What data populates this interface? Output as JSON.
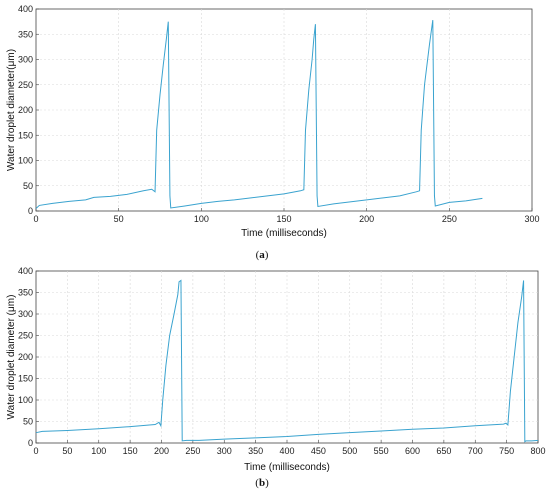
{
  "chart_data": [
    {
      "type": "line",
      "caption_letter": "a",
      "xlabel": "Time (milliseconds)",
      "ylabel": "Water droplet diameter(μm)",
      "xlim": [
        0,
        300
      ],
      "ylim": [
        0,
        400
      ],
      "xticks": [
        0,
        50,
        100,
        150,
        200,
        250,
        300
      ],
      "yticks": [
        0,
        50,
        100,
        150,
        200,
        250,
        300,
        350,
        400
      ],
      "grid": true,
      "line_color": "#3aa3cf",
      "series": [
        {
          "x": [
            0,
            2,
            10,
            20,
            30,
            35,
            45,
            55,
            65,
            70,
            72,
            73,
            75,
            77,
            79,
            80,
            81,
            81.5,
            90,
            100,
            110,
            120,
            130,
            140,
            150,
            160,
            162,
            163,
            165,
            167,
            168,
            169,
            170,
            170.5,
            180,
            190,
            200,
            210,
            220,
            230,
            232,
            233,
            235,
            238,
            240,
            241,
            241.5,
            250,
            260,
            270
          ],
          "y": [
            5,
            11,
            15,
            19,
            22,
            27,
            29,
            33,
            40,
            43,
            38,
            160,
            230,
            290,
            345,
            375,
            30,
            6,
            10,
            15,
            19,
            22,
            26,
            30,
            34,
            40,
            42,
            160,
            240,
            300,
            340,
            370,
            30,
            9,
            14,
            18,
            22,
            26,
            30,
            38,
            40,
            160,
            250,
            330,
            378,
            30,
            10,
            17,
            20,
            25
          ]
        }
      ]
    },
    {
      "type": "line",
      "caption_letter": "b",
      "xlabel": "Time (milliseconds)",
      "ylabel": "Water droplet diameter (μm)",
      "xlim": [
        0,
        800
      ],
      "ylim": [
        0,
        400
      ],
      "xticks": [
        0,
        50,
        100,
        150,
        200,
        250,
        300,
        350,
        400,
        450,
        500,
        550,
        600,
        650,
        700,
        750,
        800
      ],
      "yticks": [
        0,
        50,
        100,
        150,
        200,
        250,
        300,
        350,
        400
      ],
      "grid": true,
      "line_color": "#3aa3cf",
      "series": [
        {
          "x": [
            0,
            10,
            50,
            100,
            150,
            190,
            196,
            199,
            202,
            207,
            213,
            220,
            226,
            228,
            231,
            233,
            240,
            260,
            300,
            350,
            400,
            450,
            500,
            550,
            600,
            650,
            700,
            745,
            749,
            752,
            756,
            762,
            768,
            774,
            777,
            779,
            781,
            790,
            800
          ],
          "y": [
            24,
            27,
            29,
            33,
            38,
            43,
            48,
            40,
            100,
            180,
            250,
            300,
            345,
            375,
            378,
            5,
            6,
            6,
            9,
            12,
            15,
            20,
            24,
            28,
            32,
            35,
            40,
            44,
            46,
            42,
            120,
            200,
            280,
            340,
            378,
            3,
            5,
            5,
            6
          ]
        }
      ]
    }
  ]
}
